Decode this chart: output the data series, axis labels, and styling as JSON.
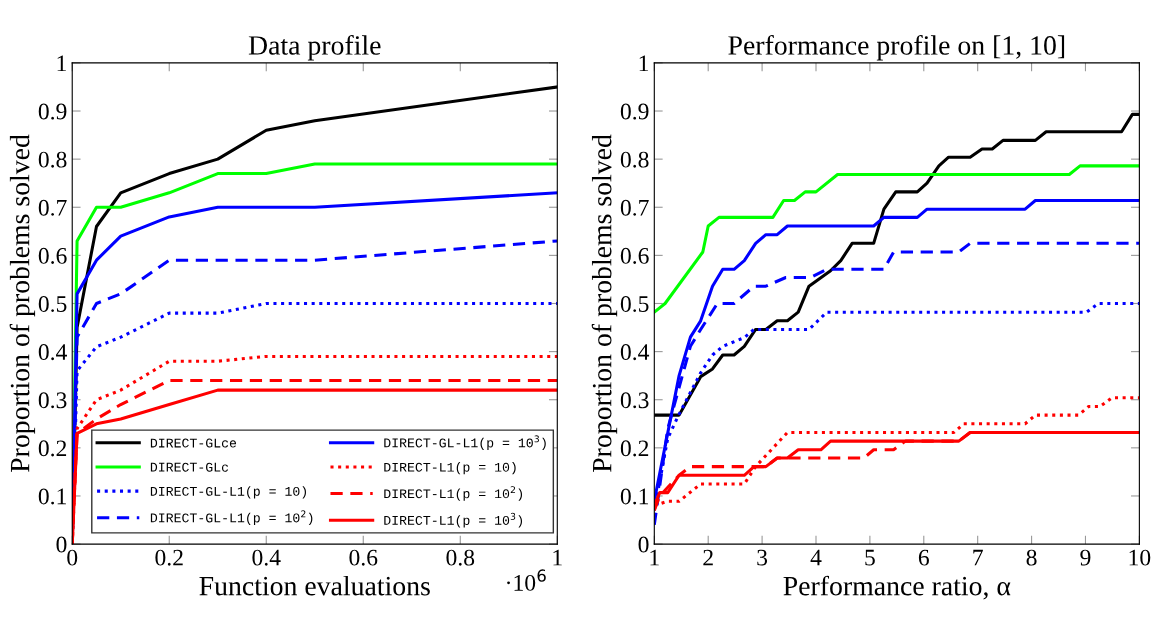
{
  "chart_data": [
    {
      "type": "line",
      "title": "Data profile",
      "xlabel": "Function evaluations",
      "ylabel": "Proportion of problems solved",
      "annotations": [
        "·10$^{6}$"
      ],
      "x": [
        0,
        0.01,
        0.05,
        0.1,
        0.2,
        0.3,
        0.4,
        0.5,
        1
      ],
      "xlim": [
        0,
        1
      ],
      "xticks": [
        0,
        0.2,
        0.4,
        0.6,
        0.8,
        1
      ],
      "ylim": [
        0,
        1
      ],
      "yticks": [
        0,
        0.1,
        0.2,
        0.3,
        0.4,
        0.5,
        0.6,
        0.7,
        0.8,
        0.9,
        1
      ],
      "grid": false,
      "legend": "bottom right",
      "series": [
        {
          "name": "DIRECT-GLce",
          "color": "#000000",
          "line_style": "solid",
          "values": [
            0,
            0.45,
            0.66,
            0.73,
            0.77,
            0.8,
            0.86,
            0.88,
            0.95
          ]
        },
        {
          "name": "DIRECT-GLc",
          "color": "#00ff00",
          "line_style": "solid",
          "values": [
            0,
            0.63,
            0.7,
            0.7,
            0.73,
            0.77,
            0.77,
            0.79,
            0.79
          ]
        },
        {
          "name": "DIRECT-GL-L1(p = 10)",
          "color": "#0000ff",
          "line_style": "dotted",
          "values": [
            0,
            0.36,
            0.41,
            0.43,
            0.48,
            0.48,
            0.5,
            0.5,
            0.5
          ]
        },
        {
          "name": "DIRECT-GL-L1(p = 10$^{2}$)",
          "color": "#0000ff",
          "line_style": "dashed",
          "values": [
            0,
            0.43,
            0.5,
            0.52,
            0.59,
            0.59,
            0.59,
            0.59,
            0.63
          ]
        },
        {
          "name": "DIRECT-GL-L1(p = 10$^{3}$)",
          "color": "#0000ff",
          "line_style": "solid",
          "values": [
            0,
            0.52,
            0.59,
            0.64,
            0.68,
            0.7,
            0.7,
            0.7,
            0.73
          ]
        },
        {
          "name": "DIRECT-L1(p = 10)",
          "color": "#ff0000",
          "line_style": "dotted",
          "values": [
            0,
            0.24,
            0.3,
            0.32,
            0.38,
            0.38,
            0.39,
            0.39,
            0.39
          ]
        },
        {
          "name": "DIRECT-L1(p = 10$^{2}$)",
          "color": "#ff0000",
          "line_style": "dashed",
          "values": [
            0,
            0.23,
            0.26,
            0.29,
            0.34,
            0.34,
            0.34,
            0.34,
            0.34
          ]
        },
        {
          "name": "DIRECT-L1(p = 10$^{3}$)",
          "color": "#ff0000",
          "line_style": "solid",
          "values": [
            0,
            0.23,
            0.25,
            0.26,
            0.29,
            0.32,
            0.32,
            0.32,
            0.32
          ]
        }
      ]
    },
    {
      "type": "line",
      "title": "Performance profile on [1, 10]",
      "xlabel": "Performance ratio, α",
      "ylabel": "Proportion of problems solved",
      "xlim": [
        1,
        10
      ],
      "xticks": [
        1,
        2,
        3,
        4,
        5,
        6,
        7,
        8,
        9,
        10
      ],
      "ylim": [
        0,
        1
      ],
      "yticks": [
        0,
        0.1,
        0.2,
        0.3,
        0.4,
        0.5,
        0.6,
        0.7,
        0.8,
        0.9,
        1
      ],
      "grid": false,
      "series": [
        {
          "color": "#000000",
          "line_style": "solid",
          "x": [
            1,
            1.46,
            1.86,
            2.08,
            2.27,
            2.48,
            2.67,
            2.88,
            3.07,
            3.28,
            3.47,
            3.67,
            3.87,
            4.27,
            4.46,
            4.67,
            5.07,
            5.26,
            5.48,
            5.88,
            6.06,
            6.28,
            6.46,
            6.86,
            7.08,
            7.27,
            7.47,
            8.07,
            8.27,
            9.67,
            9.87,
            10
          ],
          "values": [
            0.268,
            0.268,
            0.348,
            0.364,
            0.393,
            0.393,
            0.411,
            0.446,
            0.446,
            0.464,
            0.464,
            0.482,
            0.536,
            0.568,
            0.589,
            0.625,
            0.625,
            0.696,
            0.732,
            0.732,
            0.75,
            0.786,
            0.804,
            0.804,
            0.821,
            0.821,
            0.839,
            0.839,
            0.857,
            0.857,
            0.893,
            0.893
          ]
        },
        {
          "color": "#00ff00",
          "line_style": "solid",
          "x": [
            1,
            1.2,
            1.9,
            2.0,
            2.2,
            3.2,
            3.4,
            3.6,
            3.8,
            4.0,
            4.4,
            8.7,
            8.9,
            10
          ],
          "values": [
            0.482,
            0.5,
            0.607,
            0.661,
            0.679,
            0.679,
            0.714,
            0.714,
            0.732,
            0.732,
            0.768,
            0.768,
            0.786,
            0.786
          ]
        },
        {
          "color": "#0000ff",
          "line_style": "dotted",
          "x": [
            1,
            1.25,
            1.46,
            1.86,
            2.08,
            2.27,
            2.67,
            2.85,
            3.07,
            3.87,
            4.2,
            9.02,
            9.24,
            10
          ],
          "values": [
            0.07,
            0.22,
            0.27,
            0.356,
            0.393,
            0.411,
            0.429,
            0.446,
            0.446,
            0.446,
            0.482,
            0.482,
            0.5,
            0.5
          ]
        },
        {
          "color": "#0000ff",
          "line_style": "dashed",
          "x": [
            1,
            1.25,
            1.67,
            1.86,
            2.17,
            2.48,
            2.85,
            3.07,
            3.44,
            3.9,
            4.2,
            5.26,
            5.44,
            6.65,
            6.86,
            10
          ],
          "values": [
            0.04,
            0.24,
            0.411,
            0.446,
            0.5,
            0.5,
            0.536,
            0.536,
            0.554,
            0.554,
            0.571,
            0.571,
            0.607,
            0.607,
            0.625,
            0.625
          ]
        },
        {
          "color": "#0000ff",
          "line_style": "solid",
          "x": [
            1,
            1.46,
            1.67,
            1.86,
            2.08,
            2.27,
            2.48,
            2.67,
            2.88,
            3.07,
            3.28,
            3.47,
            5.07,
            5.26,
            5.88,
            6.06,
            7.88,
            8.07,
            10
          ],
          "values": [
            0.09,
            0.35,
            0.43,
            0.464,
            0.536,
            0.571,
            0.571,
            0.589,
            0.625,
            0.643,
            0.643,
            0.661,
            0.661,
            0.679,
            0.679,
            0.696,
            0.696,
            0.714,
            0.714
          ]
        },
        {
          "color": "#ff0000",
          "line_style": "dotted",
          "x": [
            1,
            1.25,
            1.46,
            1.86,
            2.67,
            2.88,
            3.47,
            6.56,
            6.74,
            7.88,
            8.07,
            8.87,
            9.06,
            9.27,
            9.49,
            10
          ],
          "values": [
            0.08,
            0.089,
            0.089,
            0.125,
            0.125,
            0.161,
            0.232,
            0.232,
            0.25,
            0.25,
            0.268,
            0.268,
            0.286,
            0.286,
            0.304,
            0.304
          ]
        },
        {
          "color": "#ff0000",
          "line_style": "dashed",
          "x": [
            1,
            1.1,
            1.46,
            1.67,
            2.85,
            3.07,
            3.28,
            4.89,
            5.07,
            5.44,
            5.66,
            6.65,
            6.86,
            10
          ],
          "values": [
            0.07,
            0.1,
            0.143,
            0.161,
            0.161,
            0.161,
            0.179,
            0.179,
            0.196,
            0.196,
            0.214,
            0.214,
            0.232,
            0.232
          ]
        },
        {
          "color": "#ff0000",
          "line_style": "solid",
          "x": [
            1,
            1.1,
            1.25,
            1.46,
            2.67,
            2.85,
            3.07,
            3.28,
            3.47,
            3.67,
            4.09,
            4.27,
            6.65,
            6.86,
            10
          ],
          "values": [
            0.08,
            0.107,
            0.107,
            0.143,
            0.143,
            0.161,
            0.161,
            0.179,
            0.179,
            0.196,
            0.196,
            0.214,
            0.214,
            0.232,
            0.232
          ]
        }
      ]
    }
  ]
}
